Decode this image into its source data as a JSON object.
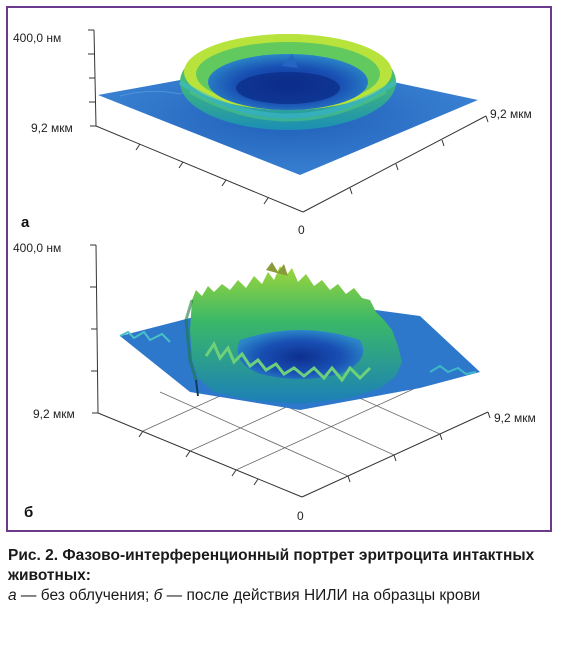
{
  "panels": [
    {
      "letter": "а",
      "z_label": "400,0 нм",
      "y_label": "9,2 мкм",
      "x_label": "9,2 мкм",
      "origin_label": "0",
      "surface": "ring-smooth"
    },
    {
      "letter": "б",
      "z_label": "400,0 нм",
      "y_label": "9,2 мкм",
      "x_label": "9,2 мкм",
      "origin_label": "0",
      "surface": "ring-jagged"
    }
  ],
  "caption": {
    "title": "Рис. 2. Фазово-интерференционный портрет эритроцита интактных животных:",
    "a_letter": "а",
    "a_text": " — без облучения; ",
    "b_letter": "б",
    "b_text": " — после действия НИЛИ на образцы крови"
  },
  "colors": {
    "frame": "#6b3a8c",
    "base": "#2a6fc4",
    "ring_high": "#b7e23a",
    "ring_mid": "#2fb86a",
    "center": "#123a9e"
  }
}
